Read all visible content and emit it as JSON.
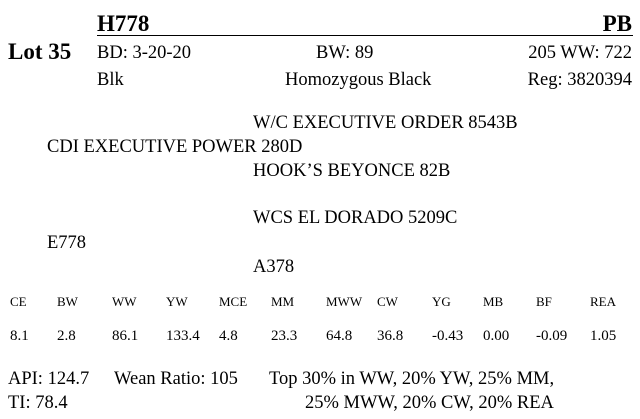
{
  "lot": "Lot 35",
  "tag": "H778",
  "breeder_code": "PB",
  "birth_date": "BD: 3-20-20",
  "birth_weight": "BW: 89",
  "wean_weight": "205 WW: 722",
  "color": "Blk",
  "genotype": "Homozygous Black",
  "registration": "Reg: 3820394",
  "pedigree": {
    "sire_sire": "W/C EXECUTIVE ORDER 8543B",
    "sire": "CDI EXECUTIVE POWER 280D",
    "sire_dam": "HOOK’S BEYONCE 82B",
    "dam_sire": "WCS EL DORADO 5209C",
    "dam": "E778",
    "dam_dam": "A378"
  },
  "epds": {
    "headers": [
      "CE",
      "BW",
      "WW",
      "YW",
      "MCE",
      "MM",
      "MWW",
      "CW",
      "YG",
      "MB",
      "BF",
      "REA"
    ],
    "values": [
      "8.1",
      "2.8",
      "86.1",
      "133.4",
      "4.8",
      "23.3",
      "64.8",
      "36.8",
      "-0.43",
      "0.00",
      "-0.09",
      "1.05"
    ]
  },
  "footer": {
    "api": "API: 124.7",
    "wean_ratio": "Wean Ratio: 105",
    "top_line1": "Top 30% in WW,  20% YW,  25% MM,",
    "ti": "TI: 78.4",
    "top_line2": "25% MWW,  20% CW,  20% REA"
  }
}
